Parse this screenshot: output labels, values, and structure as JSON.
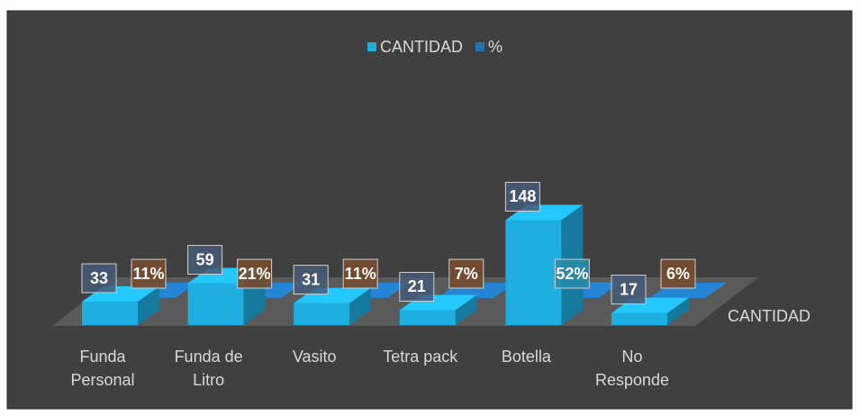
{
  "chart_data": {
    "type": "bar3d",
    "categories": [
      "Funda Personal",
      "Funda de Litro",
      "Vasito",
      "Tetra pack",
      "Botella",
      "No Responde"
    ],
    "series": [
      {
        "name": "CANTIDAD",
        "color": "#1eaee0",
        "values": [
          33,
          59,
          31,
          21,
          148,
          17
        ]
      },
      {
        "name": "%",
        "color": "#1f74b8",
        "values": [
          0.11,
          0.21,
          0.11,
          0.07,
          0.52,
          0.06
        ],
        "value_labels": [
          "11%",
          "21%",
          "11%",
          "7%",
          "52%",
          "6%"
        ]
      }
    ],
    "z_axis_label": "CANTIDAD",
    "ylim": [
      0,
      160
    ],
    "legend": "top"
  }
}
